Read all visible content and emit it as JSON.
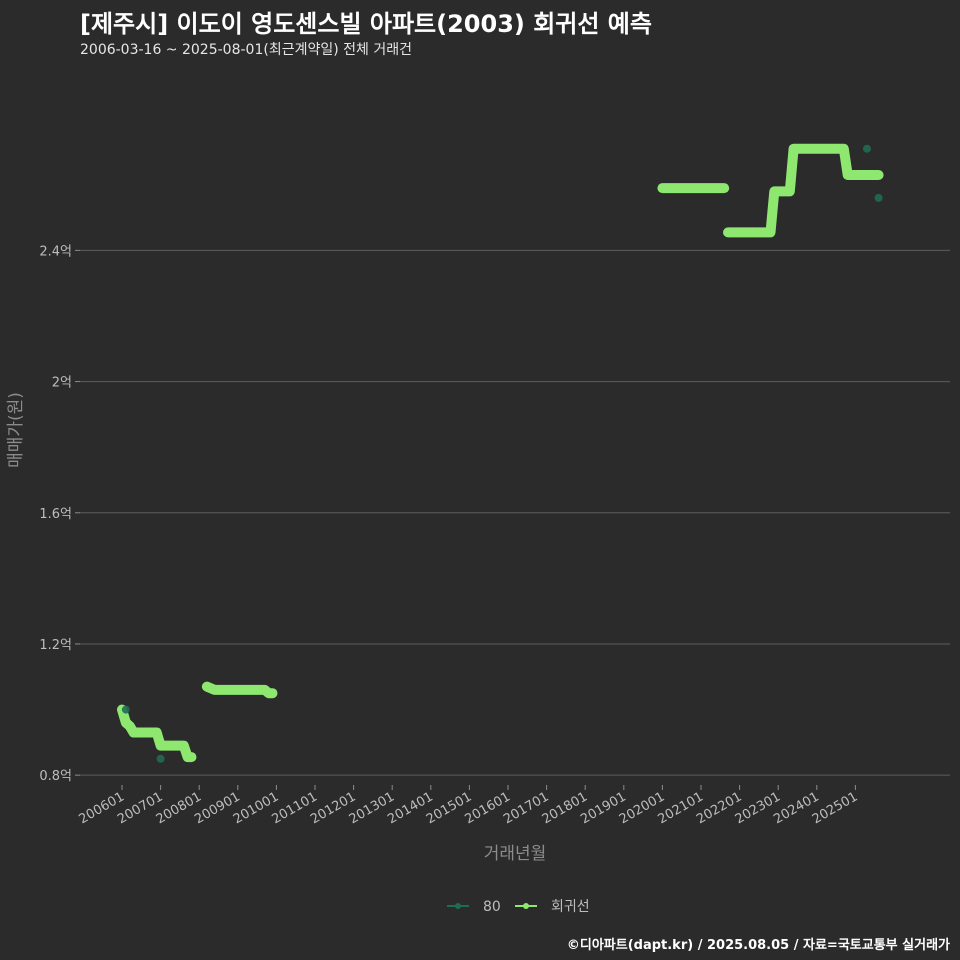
{
  "title": "[제주시] 이도이 영도센스빌 아파트(2003) 회귀선 예측",
  "subtitle": "2006-03-16 ~ 2025-08-01(최근계약일) 전체 거래건",
  "caption": "©디아파트(dapt.kr) / 2025.08.05 / 자료=국토교통부 실거래가",
  "colors": {
    "background": "#2b2b2b",
    "grid": "#5e5e5e",
    "regression": "#8ee870",
    "series80": "#1f6b54"
  },
  "chart_data": {
    "type": "line",
    "xlabel": "거래년월",
    "ylabel": "매매가(원)",
    "ylim": [
      0.77,
      2.95
    ],
    "yticks": [
      {
        "value": 0.8,
        "label": "0.8억"
      },
      {
        "value": 1.2,
        "label": "1.2억"
      },
      {
        "value": 1.6,
        "label": "1.6억"
      },
      {
        "value": 2.0,
        "label": "2억"
      },
      {
        "value": 2.4,
        "label": "2.4억"
      }
    ],
    "xticks": [
      "200601",
      "200701",
      "200801",
      "200901",
      "201001",
      "201101",
      "201201",
      "201301",
      "201401",
      "201501",
      "201601",
      "201701",
      "201801",
      "201901",
      "202001",
      "202101",
      "202201",
      "202301",
      "202401",
      "202501"
    ],
    "x_start_year": 2006,
    "x_end_year": 2026.5,
    "legend": [
      "80",
      "회귀선"
    ],
    "series": [
      {
        "name": "회귀선",
        "segments": [
          [
            [
              2006.0,
              1.0
            ],
            [
              2006.1,
              0.96
            ],
            [
              2006.2,
              0.95
            ],
            [
              2006.3,
              0.93
            ],
            [
              2006.9,
              0.93
            ],
            [
              2007.0,
              0.89
            ],
            [
              2007.6,
              0.89
            ],
            [
              2007.7,
              0.855
            ],
            [
              2007.8,
              0.855
            ]
          ],
          [
            [
              2008.2,
              1.07
            ],
            [
              2008.4,
              1.06
            ],
            [
              2009.7,
              1.06
            ],
            [
              2009.8,
              1.05
            ],
            [
              2009.9,
              1.05
            ]
          ],
          [
            [
              2020.0,
              2.59
            ],
            [
              2021.6,
              2.59
            ]
          ],
          [
            [
              2021.7,
              2.455
            ],
            [
              2022.8,
              2.455
            ],
            [
              2022.9,
              2.58
            ],
            [
              2023.3,
              2.58
            ],
            [
              2023.4,
              2.71
            ],
            [
              2024.7,
              2.71
            ],
            [
              2024.8,
              2.63
            ],
            [
              2025.6,
              2.63
            ]
          ]
        ]
      },
      {
        "name": "80",
        "points": [
          [
            2006.1,
            1.0
          ],
          [
            2007.0,
            0.85
          ],
          [
            2025.3,
            2.71
          ],
          [
            2025.6,
            2.56
          ]
        ]
      }
    ]
  }
}
